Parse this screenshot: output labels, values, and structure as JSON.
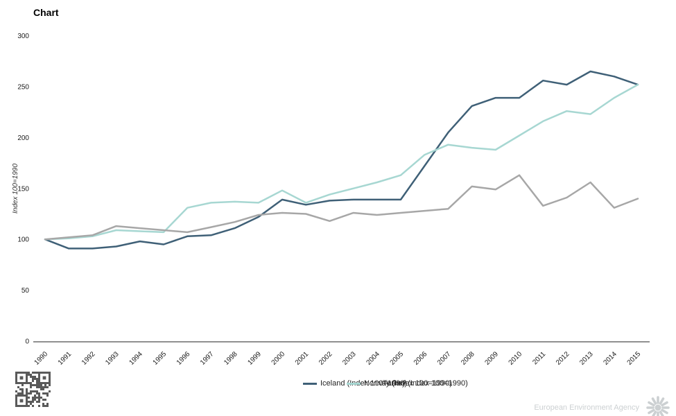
{
  "title": "Chart",
  "y_axis": {
    "title": "Index 100=1990",
    "ticks": [
      0,
      50,
      100,
      150,
      200,
      250,
      300
    ]
  },
  "x_axis": {
    "years": [
      1990,
      1991,
      1992,
      1993,
      1994,
      1995,
      1996,
      1997,
      1998,
      1999,
      2000,
      2001,
      2002,
      2003,
      2004,
      2005,
      2006,
      2007,
      2008,
      2009,
      2010,
      2011,
      2012,
      2013,
      2014,
      2015
    ]
  },
  "legend": [
    {
      "key": "iceland",
      "label": "Iceland (Index 100=1990)",
      "color": "#3f6077"
    },
    {
      "key": "norway",
      "label": "Norway (Index 100=1990)",
      "color": "#a7d7d2"
    },
    {
      "key": "turkey",
      "label": "Turkey (Index 100=1990)",
      "color": "#a7a7a7"
    }
  ],
  "footer": {
    "credit": "European Environment Agency"
  },
  "chart_data": {
    "type": "line",
    "title": "Chart",
    "xlabel": "",
    "ylabel": "Index 100=1990",
    "ylim": [
      0,
      300
    ],
    "grid": false,
    "legend_position": "bottom",
    "x": [
      1990,
      1991,
      1992,
      1993,
      1994,
      1995,
      1996,
      1997,
      1998,
      1999,
      2000,
      2001,
      2002,
      2003,
      2004,
      2005,
      2006,
      2007,
      2008,
      2009,
      2010,
      2011,
      2012,
      2013,
      2014,
      2015
    ],
    "series": [
      {
        "name": "Iceland (Index 100=1990)",
        "color": "#3f6077",
        "values": [
          100,
          91,
          91,
          93,
          98,
          95,
          103,
          104,
          111,
          122,
          139,
          134,
          138,
          139,
          139,
          139,
          172,
          205,
          231,
          239,
          239,
          256,
          252,
          265,
          260,
          252
        ]
      },
      {
        "name": "Norway (Index 100=1990)",
        "color": "#a7d7d2",
        "values": [
          100,
          101,
          103,
          109,
          108,
          107,
          131,
          136,
          137,
          136,
          148,
          136,
          144,
          150,
          156,
          163,
          183,
          193,
          190,
          188,
          202,
          216,
          226,
          223,
          239,
          252
        ]
      },
      {
        "name": "Turkey (Index 100=1990)",
        "color": "#a7a7a7",
        "values": [
          100,
          102,
          104,
          113,
          111,
          109,
          107,
          112,
          117,
          124,
          126,
          125,
          118,
          126,
          124,
          126,
          128,
          130,
          152,
          149,
          163,
          133,
          141,
          156,
          131,
          140
        ]
      }
    ]
  }
}
